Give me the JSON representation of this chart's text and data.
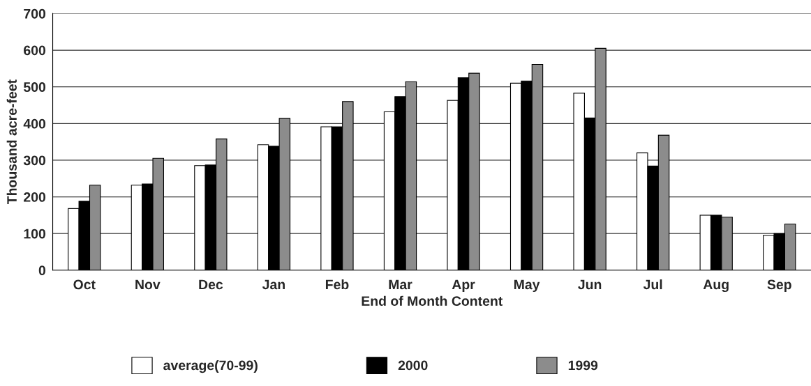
{
  "chart_data": {
    "type": "bar",
    "xlabel": "End of Month Content",
    "ylabel": "Thousand acre-feet",
    "categories": [
      "Oct",
      "Nov",
      "Dec",
      "Jan",
      "Feb",
      "Mar",
      "Apr",
      "May",
      "Jun",
      "Jul",
      "Aug",
      "Sep"
    ],
    "series": [
      {
        "name": "average(70-99)",
        "color": "#ffffff",
        "values": [
          168,
          232,
          285,
          342,
          391,
          432,
          463,
          510,
          483,
          320,
          150,
          95
        ]
      },
      {
        "name": "2000",
        "color": "#000000",
        "values": [
          188,
          235,
          287,
          338,
          391,
          473,
          525,
          516,
          415,
          284,
          150,
          100
        ]
      },
      {
        "name": "1999",
        "color": "#8c8c8c",
        "values": [
          232,
          305,
          358,
          414,
          460,
          514,
          537,
          561,
          605,
          368,
          145,
          126
        ]
      }
    ],
    "ylim": [
      0,
      700
    ],
    "yticks": [
      0,
      100,
      200,
      300,
      400,
      500,
      600,
      700
    ],
    "grid": "y",
    "legend": "bottom"
  }
}
